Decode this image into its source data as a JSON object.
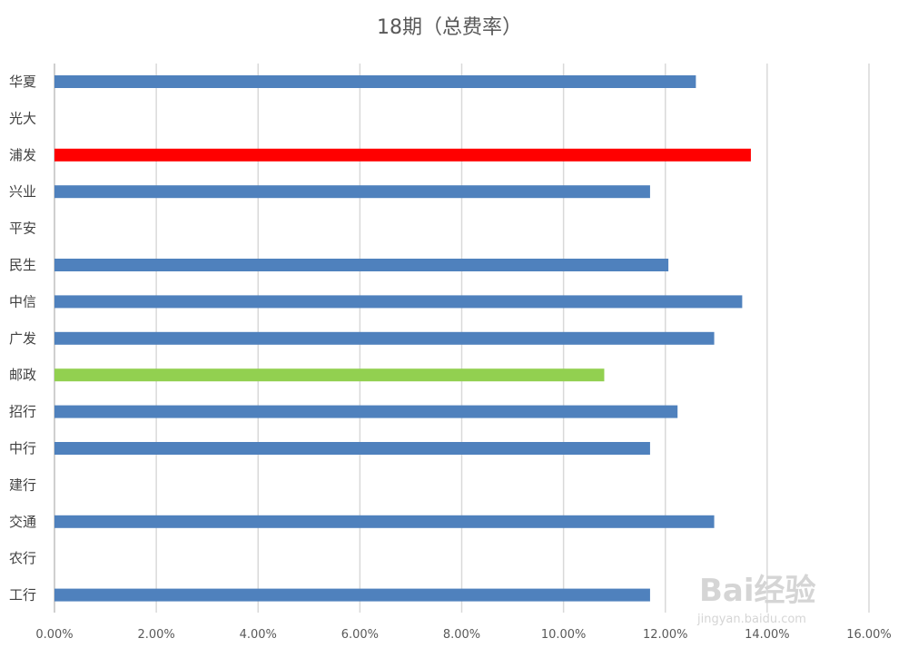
{
  "chart_data": {
    "type": "bar",
    "orientation": "horizontal",
    "title": "18期（总费率）",
    "xlabel": "",
    "ylabel": "",
    "xlim": [
      0,
      0.16
    ],
    "grid": true,
    "legend": "none",
    "x_tick_labels": [
      "0.00%",
      "2.00%",
      "4.00%",
      "6.00%",
      "8.00%",
      "10.00%",
      "12.00%",
      "14.00%",
      "16.00%"
    ],
    "categories": [
      "华夏",
      "光大",
      "浦发",
      "兴业",
      "平安",
      "民生",
      "中信",
      "广发",
      "邮政",
      "招行",
      "中行",
      "建行",
      "交通",
      "农行",
      "工行"
    ],
    "values": [
      0.126,
      null,
      0.1368,
      0.117,
      null,
      0.1206,
      0.1351,
      0.1296,
      0.108,
      0.1224,
      0.117,
      null,
      0.1296,
      null,
      0.117
    ],
    "colors": [
      "#4f81bd",
      null,
      "#ff0000",
      "#4f81bd",
      null,
      "#4f81bd",
      "#4f81bd",
      "#4f81bd",
      "#92d050",
      "#4f81bd",
      "#4f81bd",
      null,
      "#4f81bd",
      null,
      "#4f81bd"
    ]
  },
  "watermark": {
    "logo_text": "Bai经验",
    "url": "jingyan.baidu.com"
  }
}
